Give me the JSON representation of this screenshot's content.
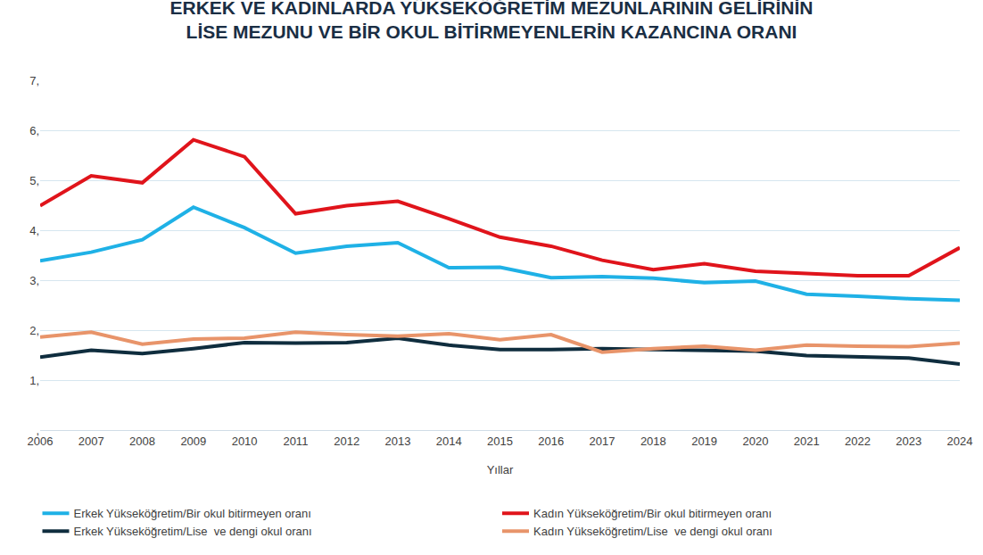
{
  "chart_data": {
    "type": "line",
    "title": "ERKEK VE KADINLARDA YÜKSEKÖĞRETİM MEZUNLARININ GELİRİNİN\nLİSE MEZUNU VE BİR OKUL BİTİRMEYENLERİN KAZANCINA ORANI",
    "x_label": "Yıllar",
    "categories": [
      "2006",
      "2007",
      "2008",
      "2009",
      "2010",
      "2011",
      "2012",
      "2013",
      "2014",
      "2015",
      "2016",
      "2017",
      "2018",
      "2019",
      "2020",
      "2021",
      "2022",
      "2023",
      "2024"
    ],
    "series": [
      {
        "name": "Erkek Yükseköğretim/Bir okul bitirmeyen oranı",
        "color": "#1fb1e6",
        "values": [
          3.39,
          3.56,
          3.81,
          4.46,
          4.05,
          3.54,
          3.68,
          3.75,
          3.25,
          3.26,
          3.05,
          3.07,
          3.04,
          2.95,
          2.98,
          2.72,
          2.68,
          2.63,
          2.6
        ]
      },
      {
        "name": "Kadın Yükseköğretim/Bir okul bitirmeyen oranı",
        "color": "#e0141b",
        "values": [
          4.49,
          5.09,
          4.95,
          5.81,
          5.47,
          4.33,
          4.49,
          4.58,
          4.23,
          3.86,
          3.68,
          3.4,
          3.21,
          3.33,
          3.18,
          3.14,
          3.09,
          3.09,
          3.65
        ]
      },
      {
        "name": "Erkek Yükseköğretim/Lise  ve dengi okul oranı",
        "color": "#0f2d3e",
        "values": [
          1.46,
          1.6,
          1.53,
          1.63,
          1.75,
          1.74,
          1.75,
          1.84,
          1.7,
          1.61,
          1.61,
          1.63,
          1.61,
          1.6,
          1.58,
          1.49,
          1.46,
          1.44,
          1.32
        ]
      },
      {
        "name": "Kadın Yükseköğretim/Lise  ve dengi okul oranı",
        "color": "#e8946a",
        "values": [
          1.86,
          1.96,
          1.72,
          1.82,
          1.84,
          1.96,
          1.91,
          1.88,
          1.93,
          1.81,
          1.91,
          1.56,
          1.63,
          1.68,
          1.6,
          1.7,
          1.68,
          1.67,
          1.74
        ]
      }
    ],
    "ylim": [
      0,
      7
    ],
    "yticks": [
      {
        "value": 0,
        "label": ","
      },
      {
        "value": 1,
        "label": "1,"
      },
      {
        "value": 2,
        "label": "2,"
      },
      {
        "value": 3,
        "label": "3,"
      },
      {
        "value": 4,
        "label": "4,"
      },
      {
        "value": 5,
        "label": "5,"
      },
      {
        "value": 6,
        "label": "6,"
      },
      {
        "value": 7,
        "label": "7,"
      }
    ],
    "grid": true,
    "legend": "bottom"
  }
}
